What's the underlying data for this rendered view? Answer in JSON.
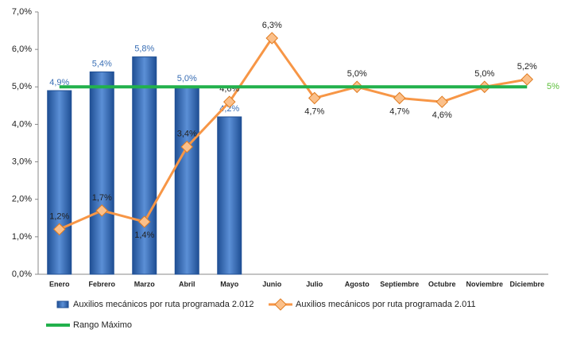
{
  "chart_data": {
    "type": "bar-line",
    "categories": [
      "Enero",
      "Febrero",
      "Marzo",
      "Abril",
      "Mayo",
      "Junio",
      "Julio",
      "Agosto",
      "Septiembre",
      "Octubre",
      "Noviembre",
      "Diciembre"
    ],
    "series": [
      {
        "name": "Auxilios mecánicos por ruta programada 2.012",
        "type": "bar",
        "color": "#3a6fb5",
        "values": [
          4.9,
          5.4,
          5.8,
          5.0,
          4.2,
          null,
          null,
          null,
          null,
          null,
          null,
          null
        ],
        "value_labels": [
          "4,9%",
          "5,4%",
          "5,8%",
          "5,0%",
          "4,2%",
          null,
          null,
          null,
          null,
          null,
          null,
          null
        ]
      },
      {
        "name": "Auxilios mecánicos por ruta programada 2.011",
        "type": "line",
        "color": "#f79646",
        "values": [
          1.2,
          1.7,
          1.4,
          3.4,
          4.6,
          6.3,
          4.7,
          5.0,
          4.7,
          4.6,
          5.0,
          5.2
        ],
        "value_labels": [
          "1,2%",
          "1,7%",
          "1,4%",
          "3,4%",
          "4,6%",
          "6,3%",
          "4,7%",
          "5,0%",
          "4,7%",
          "4,6%",
          "5,0%",
          "5,2%"
        ]
      },
      {
        "name": "Rango Máximo",
        "type": "line",
        "color": "#22b14c",
        "values": [
          5,
          5,
          5,
          5,
          5,
          5,
          5,
          5,
          5,
          5,
          5,
          5
        ],
        "label": "5%"
      }
    ],
    "ylim": [
      0,
      7
    ],
    "yticks": [
      {
        "value": 0,
        "label": "0,0%"
      },
      {
        "value": 1,
        "label": "1,0%"
      },
      {
        "value": 2,
        "label": "2,0%"
      },
      {
        "value": 3,
        "label": "3,0%"
      },
      {
        "value": 4,
        "label": "4,0%"
      },
      {
        "value": 5,
        "label": "5,0%"
      },
      {
        "value": 6,
        "label": "6,0%"
      },
      {
        "value": 7,
        "label": "7,0%"
      }
    ],
    "grid": false
  }
}
